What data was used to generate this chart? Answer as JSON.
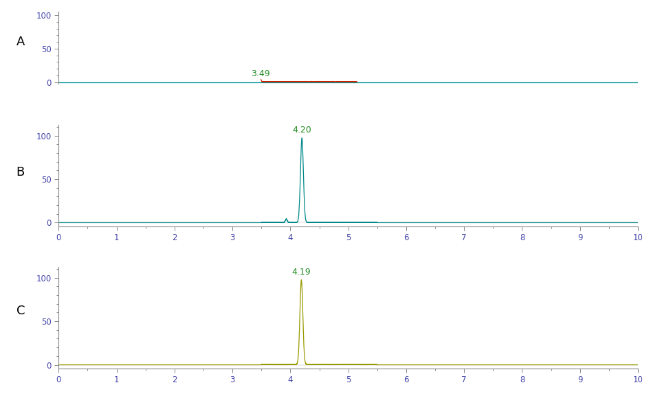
{
  "panel_A": {
    "label": "A",
    "peak_time": 3.49,
    "noise_start": 3.49,
    "noise_end": 5.2,
    "line_color": "#cc2200",
    "baseline_color": "#009090",
    "annotation_color": "#228B22",
    "annotation": "3.49"
  },
  "panel_B": {
    "label": "B",
    "peak_time": 4.2,
    "peak_height": 97,
    "peak_sigma": 0.025,
    "line_color": "#008888",
    "annotation_color": "#228B22",
    "annotation": "4.20"
  },
  "panel_C": {
    "label": "C",
    "peak_time": 4.19,
    "peak_height": 97,
    "peak_sigma": 0.025,
    "line_color": "#999900",
    "annotation_color": "#228B22",
    "annotation": "4.19"
  },
  "xlim": [
    0,
    10
  ],
  "xticks": [
    0,
    1,
    2,
    3,
    4,
    5,
    6,
    7,
    8,
    9,
    10
  ],
  "yticks": [
    0,
    50,
    100
  ],
  "tick_color": "#4444aa",
  "background_color": "#ffffff",
  "fig_width": 9.47,
  "fig_height": 5.77
}
